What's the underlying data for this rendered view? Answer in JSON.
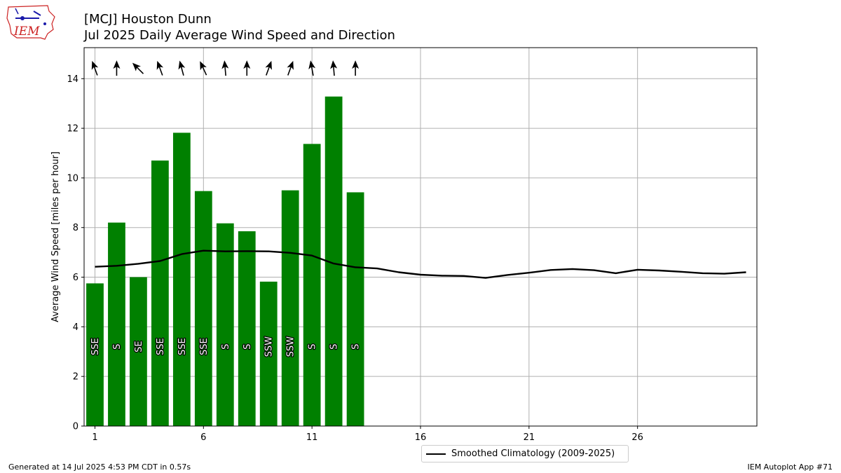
{
  "header": {
    "title_line1": "[MCJ] Houston Dunn",
    "title_line2": "Jul 2025 Daily Average Wind Speed and Direction"
  },
  "logo": {
    "text": "IEM"
  },
  "footer": {
    "left": "Generated at 14 Jul 2025 4:53 PM CDT in 0.57s",
    "right": "IEM Autoplot App #71"
  },
  "legend": {
    "label": "Smoothed Climatology (2009-2025)"
  },
  "colors": {
    "bar": "#008000",
    "line": "#000000",
    "grid": "#b0b0b0",
    "logo_red": "#cc2222",
    "logo_blue": "#1a1aaa"
  },
  "chart_data": {
    "type": "bar",
    "ylabel": "Average Wind Speed [miles per hour]",
    "xlim": [
      0.5,
      31.5
    ],
    "ylim": [
      0,
      15.25
    ],
    "xticks": [
      1,
      6,
      11,
      16,
      21,
      26
    ],
    "xtick_labels": [
      "1",
      "6",
      "11",
      "16",
      "21",
      "26"
    ],
    "yticks": [
      0,
      2,
      4,
      6,
      8,
      10,
      12,
      14
    ],
    "ytick_labels": [
      "0",
      "2",
      "4",
      "6",
      "8",
      "10",
      "12",
      "14"
    ],
    "grid": true,
    "legend_position": "below",
    "days": [
      1,
      2,
      3,
      4,
      5,
      6,
      7,
      8,
      9,
      10,
      11,
      12,
      13
    ],
    "speed": [
      5.75,
      8.2,
      6.0,
      10.7,
      11.82,
      9.47,
      8.17,
      7.85,
      5.82,
      9.5,
      11.37,
      13.28,
      9.42
    ],
    "direction_labels": [
      "SSE",
      "S",
      "SE",
      "SSE",
      "SSE",
      "SSE",
      "S",
      "S",
      "SSW",
      "SSW",
      "S",
      "S",
      "S"
    ],
    "direction_deg": [
      160,
      180,
      135,
      160,
      165,
      155,
      175,
      180,
      200,
      200,
      170,
      175,
      180
    ],
    "climatology": {
      "name": "Smoothed Climatology (2009-2025)",
      "x": [
        1,
        2,
        3,
        4,
        5,
        6,
        7,
        8,
        9,
        10,
        11,
        12,
        13,
        14,
        15,
        16,
        17,
        18,
        19,
        20,
        21,
        22,
        23,
        24,
        25,
        26,
        27,
        28,
        29,
        30,
        31
      ],
      "values": [
        6.42,
        6.46,
        6.54,
        6.65,
        6.93,
        7.07,
        7.04,
        7.05,
        7.04,
        6.98,
        6.87,
        6.55,
        6.4,
        6.35,
        6.2,
        6.1,
        6.06,
        6.05,
        5.97,
        6.09,
        6.18,
        6.29,
        6.33,
        6.28,
        6.16,
        6.3,
        6.27,
        6.22,
        6.16,
        6.14,
        6.2
      ]
    }
  }
}
